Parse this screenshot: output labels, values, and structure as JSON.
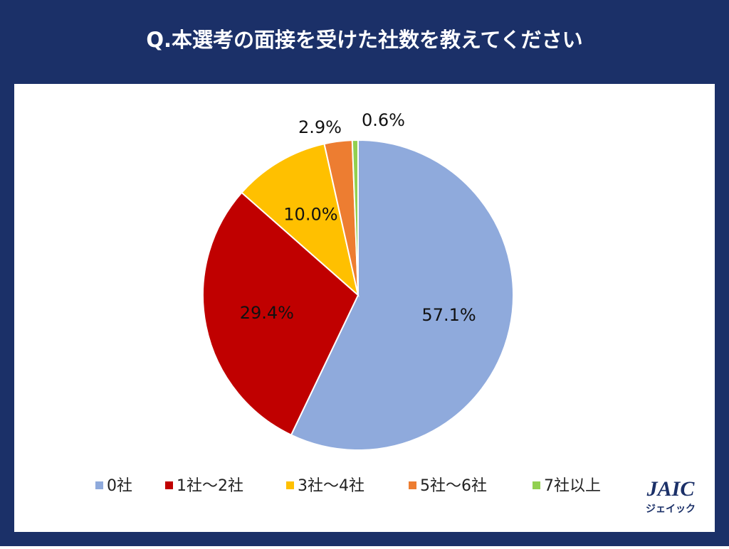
{
  "chart_data": {
    "type": "pie",
    "title": "Q.本選考の面接を受けた社数を教えてください",
    "categories": [
      "0社",
      "1社～2社",
      "3社～4社",
      "5社～6社",
      "7社以上"
    ],
    "values": [
      57.1,
      29.4,
      10.0,
      2.9,
      0.6
    ],
    "value_labels": [
      "57.1%",
      "29.4%",
      "10.0%",
      "2.9%",
      "0.6%"
    ],
    "colors": [
      "#8faadc",
      "#c00000",
      "#ffc000",
      "#ed7d31",
      "#92d050"
    ],
    "legend": "bottom"
  },
  "logo": {
    "text": "JAIC",
    "subtext": "ジェイック"
  }
}
